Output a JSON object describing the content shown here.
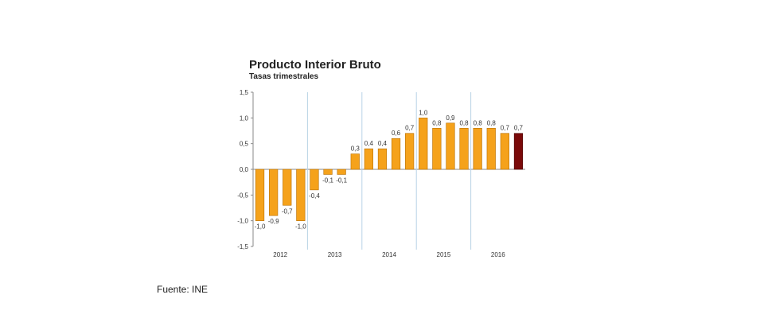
{
  "chart_data": {
    "type": "bar",
    "title": "Producto Interior Bruto",
    "subtitle": "Tasas trimestrales",
    "ylim": [
      -1.5,
      1.5
    ],
    "yticks": [
      "1,5",
      "1,0",
      "0,5",
      "0,0",
      "-0,5",
      "-1,0",
      "-1,5"
    ],
    "ytick_values": [
      1.5,
      1.0,
      0.5,
      0.0,
      -0.5,
      -1.0,
      -1.5
    ],
    "years": [
      "2012",
      "2013",
      "2014",
      "2015",
      "2016"
    ],
    "quarters_per_year": 4,
    "values": [
      -1.0,
      -0.9,
      -0.7,
      -1.0,
      -0.4,
      -0.1,
      -0.1,
      0.3,
      0.4,
      0.4,
      0.6,
      0.7,
      1.0,
      0.8,
      0.9,
      0.8,
      0.8,
      0.8,
      0.7,
      0.7
    ],
    "labels": [
      "-1,0",
      "-0,9",
      "-0,7",
      "-1,0",
      "-0,4",
      "-0,1",
      "-0,1",
      "0,3",
      "0,4",
      "0,4",
      "0,6",
      "0,7",
      "1,0",
      "0,8",
      "0,9",
      "0,8",
      "0,8",
      "0,8",
      "0,7",
      "0,7"
    ],
    "bar_color": "#f5a21b",
    "bar_border_color": "#b86e00",
    "highlight_color": "#7a0a0a",
    "highlight_index": 19,
    "grid": false
  },
  "source": "Fuente: INE"
}
